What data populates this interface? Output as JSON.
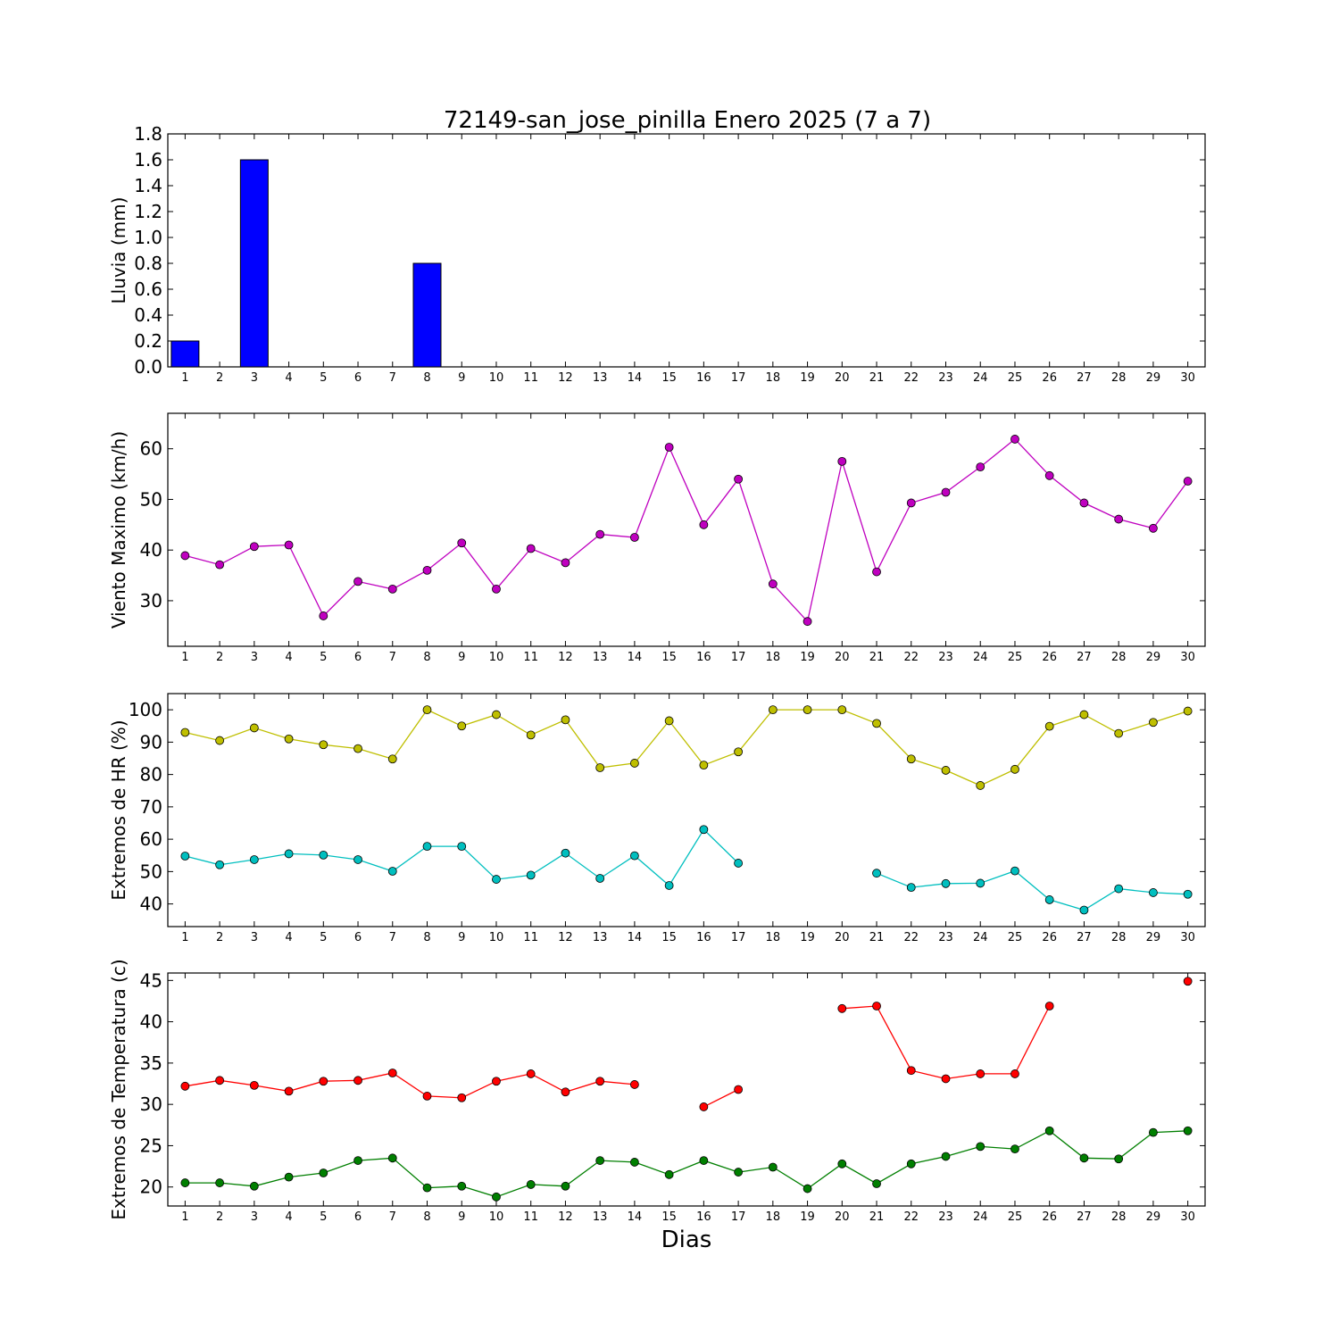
{
  "title": "72149-san_jose_pinilla Enero 2025  (7 a 7)",
  "xlabel": "Dias",
  "days": [
    1,
    2,
    3,
    4,
    5,
    6,
    7,
    8,
    9,
    10,
    11,
    12,
    13,
    14,
    15,
    16,
    17,
    18,
    19,
    20,
    21,
    22,
    23,
    24,
    25,
    26,
    27,
    28,
    29,
    30
  ],
  "chart_data": [
    {
      "type": "bar",
      "ylabel": "Lluvia (mm)",
      "ylim": [
        0,
        1.8
      ],
      "yticks": [
        0.0,
        0.2,
        0.4,
        0.6,
        0.8,
        1.0,
        1.2,
        1.4,
        1.6,
        1.8
      ],
      "ytick_labels": [
        "0.0",
        "0.2",
        "0.4",
        "0.6",
        "0.8",
        "1.0",
        "1.2",
        "1.4",
        "1.6",
        "1.8"
      ],
      "series": [
        {
          "values": [
            0.2,
            0,
            1.6,
            0,
            0,
            0,
            0,
            0.8,
            0,
            0,
            0,
            0,
            0,
            0,
            0,
            0,
            0,
            0,
            0,
            0,
            0,
            0,
            0,
            0,
            0,
            0,
            0,
            0,
            0,
            0
          ],
          "color": "#0000ff"
        }
      ]
    },
    {
      "type": "line",
      "ylabel": "Viento Maximo (km/h)",
      "ylim": [
        21,
        67
      ],
      "yticks": [
        30,
        40,
        50,
        60
      ],
      "ytick_labels": [
        "30",
        "40",
        "50",
        "60"
      ],
      "series": [
        {
          "values": [
            38.9,
            37.1,
            40.7,
            41.0,
            27.0,
            33.8,
            32.3,
            36.0,
            41.4,
            32.3,
            40.3,
            37.5,
            43.1,
            42.5,
            60.3,
            45.0,
            54.0,
            33.3,
            25.9,
            57.5,
            35.7,
            49.3,
            51.4,
            56.4,
            61.9,
            54.7,
            49.3,
            46.1,
            44.3,
            53.6
          ],
          "color": "#bf00bf"
        }
      ]
    },
    {
      "type": "line",
      "ylabel": "Extremos de HR (%)",
      "ylim": [
        33,
        105
      ],
      "yticks": [
        40,
        50,
        60,
        70,
        80,
        90,
        100
      ],
      "ytick_labels": [
        "40",
        "50",
        "60",
        "70",
        "80",
        "90",
        "100"
      ],
      "series": [
        {
          "values": [
            93,
            90.5,
            94.4,
            91,
            89.2,
            88,
            84.8,
            100,
            95,
            98.5,
            92.2,
            96.9,
            82.1,
            83.5,
            96.6,
            82.9,
            87,
            100,
            100,
            100,
            95.8,
            84.8,
            81.3,
            76.6,
            81.6,
            94.9,
            98.5,
            92.7,
            96.1,
            99.6
          ],
          "color": "#bfbf00"
        },
        {
          "values": [
            54.8,
            52.1,
            53.7,
            55.5,
            55.1,
            53.7,
            50.1,
            57.8,
            57.8,
            47.6,
            48.9,
            55.7,
            47.9,
            54.9,
            45.7,
            63,
            52.6,
            null,
            null,
            null,
            49.5,
            45.1,
            46.3,
            46.4,
            50.2,
            41.3,
            38.1,
            44.7,
            43.5,
            43
          ],
          "color": "#00bfbf"
        }
      ]
    },
    {
      "type": "line",
      "ylabel": "Extremos de Temperatura (c)",
      "ylim": [
        17.7,
        45.9
      ],
      "yticks": [
        20,
        25,
        30,
        35,
        40,
        45
      ],
      "ytick_labels": [
        "20",
        "25",
        "30",
        "35",
        "40",
        "45"
      ],
      "series": [
        {
          "values": [
            32.2,
            32.9,
            32.3,
            31.6,
            32.8,
            32.9,
            33.8,
            31.0,
            30.8,
            32.8,
            33.7,
            31.5,
            32.8,
            32.4,
            null,
            29.7,
            31.8,
            null,
            null,
            41.6,
            41.9,
            34.1,
            33.1,
            33.7,
            33.7,
            41.9,
            null,
            null,
            null,
            44.9
          ],
          "color": "#ff0000"
        },
        {
          "values": [
            20.5,
            20.5,
            20.1,
            21.2,
            21.7,
            23.2,
            23.5,
            19.9,
            20.1,
            18.8,
            20.3,
            20.1,
            23.2,
            23.0,
            21.5,
            23.2,
            21.8,
            22.4,
            19.8,
            22.8,
            20.4,
            22.8,
            23.7,
            24.9,
            24.6,
            26.8,
            23.5,
            23.4,
            26.6,
            26.8
          ],
          "color": "#007f00"
        }
      ]
    }
  ]
}
